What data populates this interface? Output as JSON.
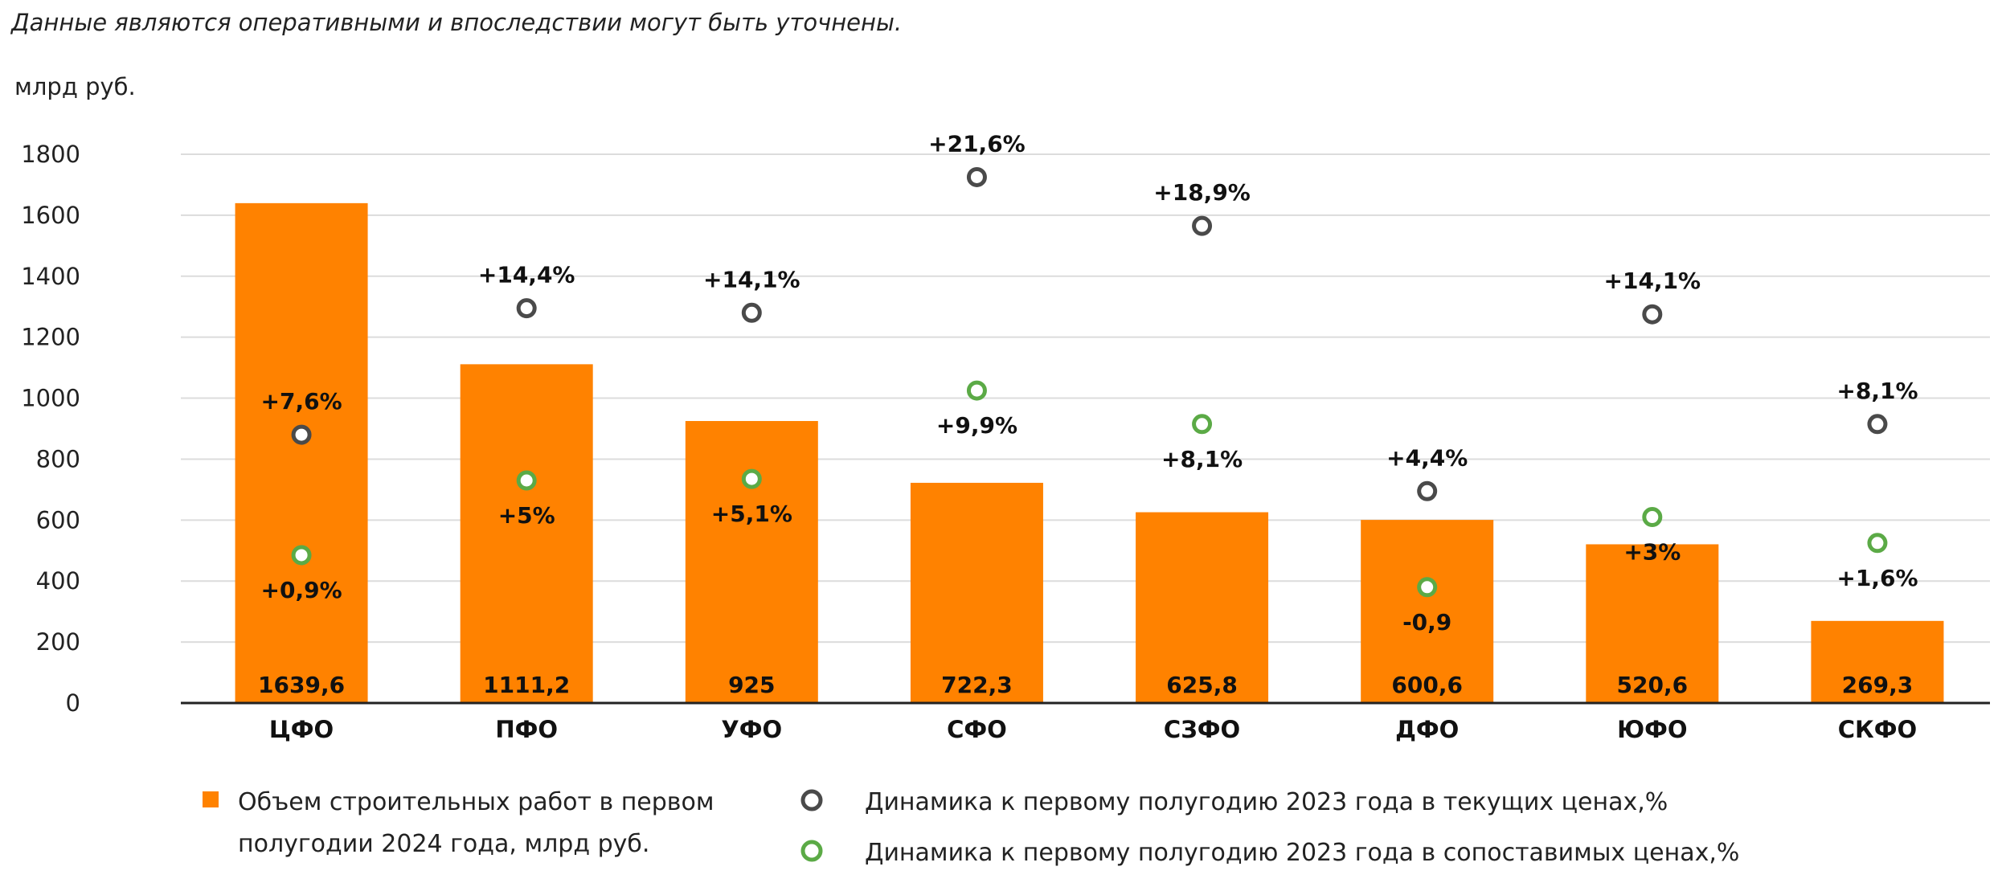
{
  "note": "Данные являются оперативными и впоследствии могут быть уточнены.",
  "chart_data": {
    "type": "bar",
    "ylabel": "млрд руб.",
    "ylim": [
      0,
      1800
    ],
    "yticks": [
      0,
      200,
      400,
      600,
      800,
      1000,
      1200,
      1400,
      1600,
      1800
    ],
    "grid": true,
    "categories": [
      "ЦФО",
      "ПФО",
      "УФО",
      "СФО",
      "СЗФО",
      "ДФО",
      "ЮФО",
      "СКФО"
    ],
    "series": [
      {
        "name": "Объем строительных работ в первом полугодии 2024 года, млрд руб.",
        "type": "bar",
        "color": "#FF8200",
        "values": [
          1639.6,
          1111.2,
          925,
          722.3,
          625.8,
          600.6,
          520.6,
          269.3
        ],
        "labels": [
          "1639,6",
          "1111,2",
          "925",
          "722,3",
          "625,8",
          "600,6",
          "520,6",
          "269,3"
        ]
      },
      {
        "name": "Динамика к первому полугодию 2023 года в текущих ценах,%",
        "type": "marker",
        "color": "#4A4A4A",
        "marker_positions": [
          880,
          1295,
          1280,
          1725,
          1565,
          695,
          1275,
          915
        ],
        "labels": [
          "+7,6%",
          "+14,4%",
          "+14,1%",
          "+21,6%",
          "+18,9%",
          "+4,4%",
          "+14,1%",
          "+8,1%"
        ]
      },
      {
        "name": "Динамика к первому полугодию 2023 года в сопоставимых ценах,%",
        "type": "marker",
        "color": "#5BAA46",
        "marker_positions": [
          485,
          730,
          735,
          1025,
          915,
          380,
          610,
          525
        ],
        "labels": [
          "+0,9%",
          "+5%",
          "+5,1%",
          "+9,9%",
          "+8,1%",
          "-0,9",
          "+3%",
          "+1,6%"
        ]
      }
    ],
    "legend": {
      "placement": "bottom",
      "bar_label_line1": "Объем строительных работ в первом",
      "bar_label_line2": "полугодии 2024 года, млрд руб."
    }
  }
}
